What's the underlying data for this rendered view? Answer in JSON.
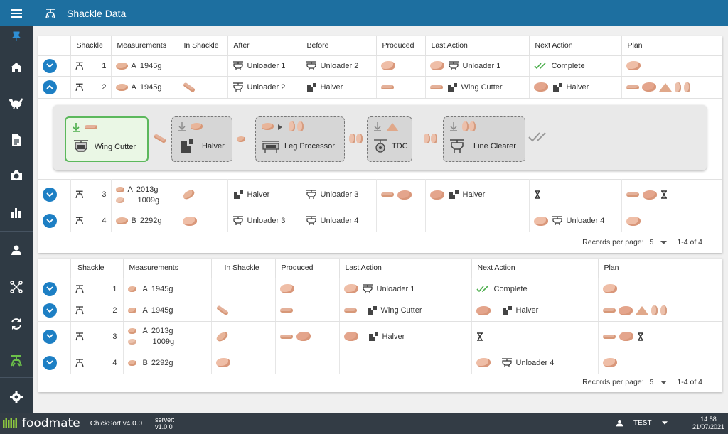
{
  "app": {
    "title": "Shackle Data"
  },
  "sidebar": {
    "items": [
      {
        "name": "pin-icon"
      },
      {
        "name": "home-icon"
      },
      {
        "name": "chicken-icon"
      },
      {
        "name": "document-icon"
      },
      {
        "name": "camera-icon"
      },
      {
        "name": "bar-chart-icon"
      },
      {
        "name": "person-icon"
      },
      {
        "name": "network-icon"
      },
      {
        "name": "sync-icon"
      },
      {
        "name": "shackle-icon"
      },
      {
        "name": "gear-icon"
      }
    ]
  },
  "table1": {
    "headers": [
      "Shackle",
      "Measurements",
      "In Shackle",
      "After",
      "Before",
      "Produced",
      "Last Action",
      "Next Action",
      "Plan"
    ],
    "rows": [
      {
        "shackle": "1",
        "grade": "A",
        "weight": "1945g",
        "after": "Unloader 1",
        "before": "Unloader 2",
        "last_action": "Unloader 1",
        "next_action": "Complete"
      },
      {
        "shackle": "2",
        "grade": "A",
        "weight": "1945g",
        "after": "Unloader 2",
        "before": "Halver",
        "last_action": "Wing Cutter",
        "next_action": "Halver"
      },
      {
        "shackle": "3",
        "grade": "A",
        "weight": "2013g",
        "weight2": "1009g",
        "after": "Halver",
        "before": "Unloader 3",
        "last_action": "Halver",
        "next_action": ""
      },
      {
        "shackle": "4",
        "grade": "B",
        "weight": "2292g",
        "after": "Unloader 3",
        "before": "Unloader 4",
        "last_action": "",
        "next_action": "Unloader 4"
      }
    ],
    "pager": {
      "rows_per_page_label": "Records per page:",
      "rows_per_page": "5",
      "range": "1-4 of 4"
    }
  },
  "flow": {
    "steps": [
      "Wing Cutter",
      "Halver",
      "Leg Processor",
      "TDC",
      "Line Clearer"
    ]
  },
  "table2": {
    "headers": [
      "Shackle",
      "Measurements",
      "In Shackle",
      "Produced",
      "Last Action",
      "Next Action",
      "Plan"
    ],
    "rows": [
      {
        "shackle": "1",
        "grade": "A",
        "weight": "1945g",
        "last_action": "Unloader 1",
        "next_action": "Complete"
      },
      {
        "shackle": "2",
        "grade": "A",
        "weight": "1945g",
        "last_action": "Wing Cutter",
        "next_action": "Halver"
      },
      {
        "shackle": "3",
        "grade": "A",
        "weight": "2013g",
        "weight2": "1009g",
        "last_action": "Halver",
        "next_action": ""
      },
      {
        "shackle": "4",
        "grade": "B",
        "weight": "2292g",
        "last_action": "",
        "next_action": "Unloader 4"
      }
    ],
    "pager": {
      "rows_per_page_label": "Records per page:",
      "rows_per_page": "5",
      "range": "1-4 of 4"
    }
  },
  "footer": {
    "brand": "foodmate",
    "product": "ChickSort v4.0.0",
    "server_label": "server:",
    "server_version": "v1.0.0",
    "user": "TEST",
    "time": "14:58",
    "date": "21/07/2021"
  },
  "colors": {
    "header": "#1d6fa0",
    "sidebar": "#2f3a44",
    "footer": "#333c45",
    "accent": "#1d7fc4",
    "active_step": "#5cb85c"
  }
}
